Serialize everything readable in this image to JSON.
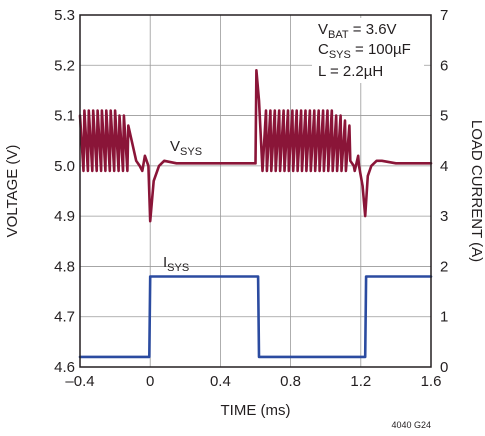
{
  "chart_data": {
    "type": "line",
    "title": "",
    "xlabel": "TIME (ms)",
    "ylabel_left": "VOLTAGE (V)",
    "ylabel_right": "LOAD CURRENT (A)",
    "xlim": [
      -0.4,
      1.6
    ],
    "ylim_left": [
      4.6,
      5.3
    ],
    "ylim_right": [
      0,
      7
    ],
    "x_ticks": [
      "–0.4",
      "0",
      "0.4",
      "0.8",
      "1.2",
      "1.6"
    ],
    "y_left_ticks": [
      "4.6",
      "4.7",
      "4.8",
      "4.9",
      "5.0",
      "5.1",
      "5.2",
      "5.3"
    ],
    "y_right_ticks": [
      "0",
      "1",
      "2",
      "3",
      "4",
      "5",
      "6",
      "7"
    ],
    "grid": true,
    "series": [
      {
        "name": "VSYS",
        "axis": "left",
        "color": "#8a1538",
        "x": [
          -0.4,
          -0.38,
          -0.375,
          -0.355,
          -0.35,
          -0.33,
          -0.325,
          -0.305,
          -0.3,
          -0.28,
          -0.275,
          -0.255,
          -0.25,
          -0.23,
          -0.225,
          -0.205,
          -0.2,
          -0.18,
          -0.175,
          -0.155,
          -0.15,
          -0.13,
          -0.125,
          -0.08,
          -0.06,
          -0.045,
          -0.03,
          -0.01,
          0.0,
          0.02,
          0.05,
          0.08,
          0.15,
          0.25,
          0.35,
          0.45,
          0.55,
          0.6,
          0.605,
          0.62,
          0.64,
          0.66,
          0.665,
          0.685,
          0.69,
          0.71,
          0.715,
          0.735,
          0.74,
          0.76,
          0.765,
          0.785,
          0.79,
          0.81,
          0.815,
          0.835,
          0.84,
          0.86,
          0.865,
          0.885,
          0.89,
          0.91,
          0.915,
          0.935,
          0.94,
          0.96,
          0.965,
          0.985,
          0.99,
          1.01,
          1.015,
          1.035,
          1.04,
          1.06,
          1.065,
          1.085,
          1.09,
          1.11,
          1.115,
          1.135,
          1.14,
          1.16,
          1.165,
          1.185,
          1.19,
          1.21,
          1.225,
          1.24,
          1.26,
          1.29,
          1.32,
          1.4,
          1.5,
          1.6
        ],
        "y": [
          5.1,
          4.99,
          5.11,
          4.99,
          5.11,
          4.99,
          5.11,
          4.99,
          5.11,
          4.99,
          5.11,
          4.99,
          5.11,
          4.99,
          5.11,
          4.99,
          5.11,
          4.99,
          5.1,
          4.99,
          5.1,
          4.99,
          5.08,
          5.01,
          5.0,
          4.99,
          5.02,
          5.0,
          4.89,
          4.97,
          5.0,
          5.01,
          5.005,
          5.005,
          5.005,
          5.005,
          5.005,
          5.005,
          5.19,
          5.13,
          4.99,
          5.11,
          4.99,
          5.11,
          4.99,
          5.11,
          4.99,
          5.11,
          4.99,
          5.11,
          4.99,
          5.11,
          4.99,
          5.11,
          4.99,
          5.11,
          4.99,
          5.11,
          4.99,
          5.11,
          4.99,
          5.11,
          4.99,
          5.11,
          4.99,
          5.11,
          4.99,
          5.11,
          4.99,
          5.11,
          4.99,
          5.11,
          4.99,
          5.1,
          4.99,
          5.1,
          4.99,
          5.09,
          4.99,
          5.08,
          5.01,
          5.0,
          4.99,
          5.02,
          5.0,
          4.96,
          4.9,
          4.98,
          5.0,
          5.01,
          5.01,
          5.005,
          5.005,
          5.005
        ]
      },
      {
        "name": "ISYS",
        "axis": "right",
        "color": "#2b4ba0",
        "x": [
          -0.4,
          -0.005,
          0.0,
          0.615,
          0.62,
          1.225,
          1.23,
          1.6
        ],
        "y": [
          0.2,
          0.2,
          1.8,
          1.8,
          0.2,
          0.2,
          1.8,
          1.8
        ]
      }
    ],
    "annotations": {
      "vsys_label": "V",
      "vsys_sub": "SYS",
      "isys_label": "I",
      "isys_sub": "SYS",
      "vbat_main": "V",
      "vbat_sub": "BAT",
      "vbat_value": " = 3.6V",
      "csys_main": "C",
      "csys_sub": "SYS",
      "csys_value": " = 100µF",
      "inductor": "L = 2.2µH"
    },
    "figure_id": "4040 G24"
  }
}
